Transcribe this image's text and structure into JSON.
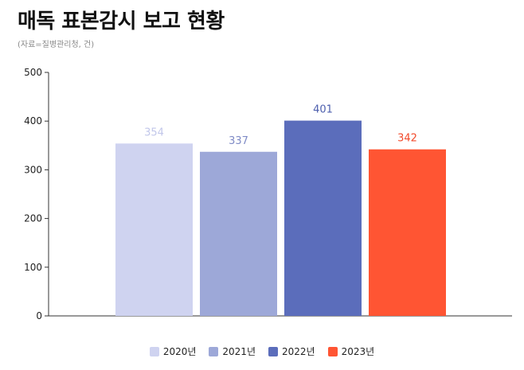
{
  "title": "매독 표본감시 보고 현황",
  "source": "(자료=질병관리청, 건)",
  "chart_data": {
    "type": "bar",
    "categories": [
      "2020년",
      "2021년",
      "2022년",
      "2023년"
    ],
    "values": [
      354,
      337,
      401,
      342
    ],
    "colors": [
      "#cfd3f0",
      "#9da8d8",
      "#5b6dbb",
      "#ff5533"
    ],
    "label_colors": [
      "#c2c7ea",
      "#7f8bc6",
      "#4d5fae",
      "#f24a2b"
    ],
    "ylim": [
      0,
      500
    ],
    "yticks": [
      0,
      100,
      200,
      300,
      400,
      500
    ],
    "grid": false,
    "legend_position": "bottom"
  }
}
